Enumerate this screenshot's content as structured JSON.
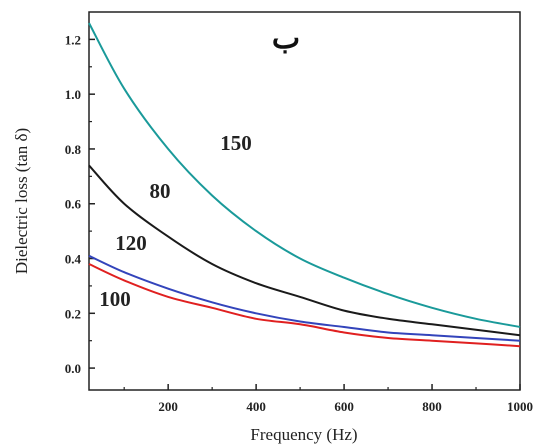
{
  "chart_data": {
    "type": "line",
    "title": "",
    "panel_label": "ب",
    "xlabel": "Frequency (Hz)",
    "ylabel": "Dielectric loss (tan δ)",
    "xlim": [
      20,
      1000
    ],
    "ylim": [
      -0.08,
      1.3
    ],
    "x_ticks": [
      200,
      400,
      600,
      800,
      1000
    ],
    "x_tick_labels": [
      "200",
      "400",
      "600",
      "800",
      "1000"
    ],
    "y_ticks": [
      0.0,
      0.2,
      0.4,
      0.6,
      0.8,
      1.0,
      1.2
    ],
    "y_tick_labels": [
      "0.0",
      "0.2",
      "0.4",
      "0.6",
      "0.8",
      "1.0",
      "1.2"
    ],
    "grid": false,
    "x": [
      20,
      100,
      200,
      300,
      400,
      500,
      600,
      700,
      800,
      900,
      1000
    ],
    "series": [
      {
        "name": "150",
        "color": "#1a9a9a",
        "values": [
          1.26,
          1.02,
          0.8,
          0.63,
          0.5,
          0.4,
          0.33,
          0.27,
          0.22,
          0.18,
          0.15
        ]
      },
      {
        "name": "80",
        "color": "#1a1a1a",
        "values": [
          0.74,
          0.6,
          0.48,
          0.38,
          0.31,
          0.26,
          0.21,
          0.18,
          0.16,
          0.14,
          0.12
        ]
      },
      {
        "name": "120",
        "color": "#3344bb",
        "values": [
          0.41,
          0.35,
          0.29,
          0.24,
          0.2,
          0.17,
          0.15,
          0.13,
          0.12,
          0.11,
          0.1
        ]
      },
      {
        "name": "100",
        "color": "#e02020",
        "values": [
          0.38,
          0.32,
          0.26,
          0.22,
          0.18,
          0.16,
          0.13,
          0.11,
          0.1,
          0.09,
          0.08
        ]
      }
    ]
  }
}
